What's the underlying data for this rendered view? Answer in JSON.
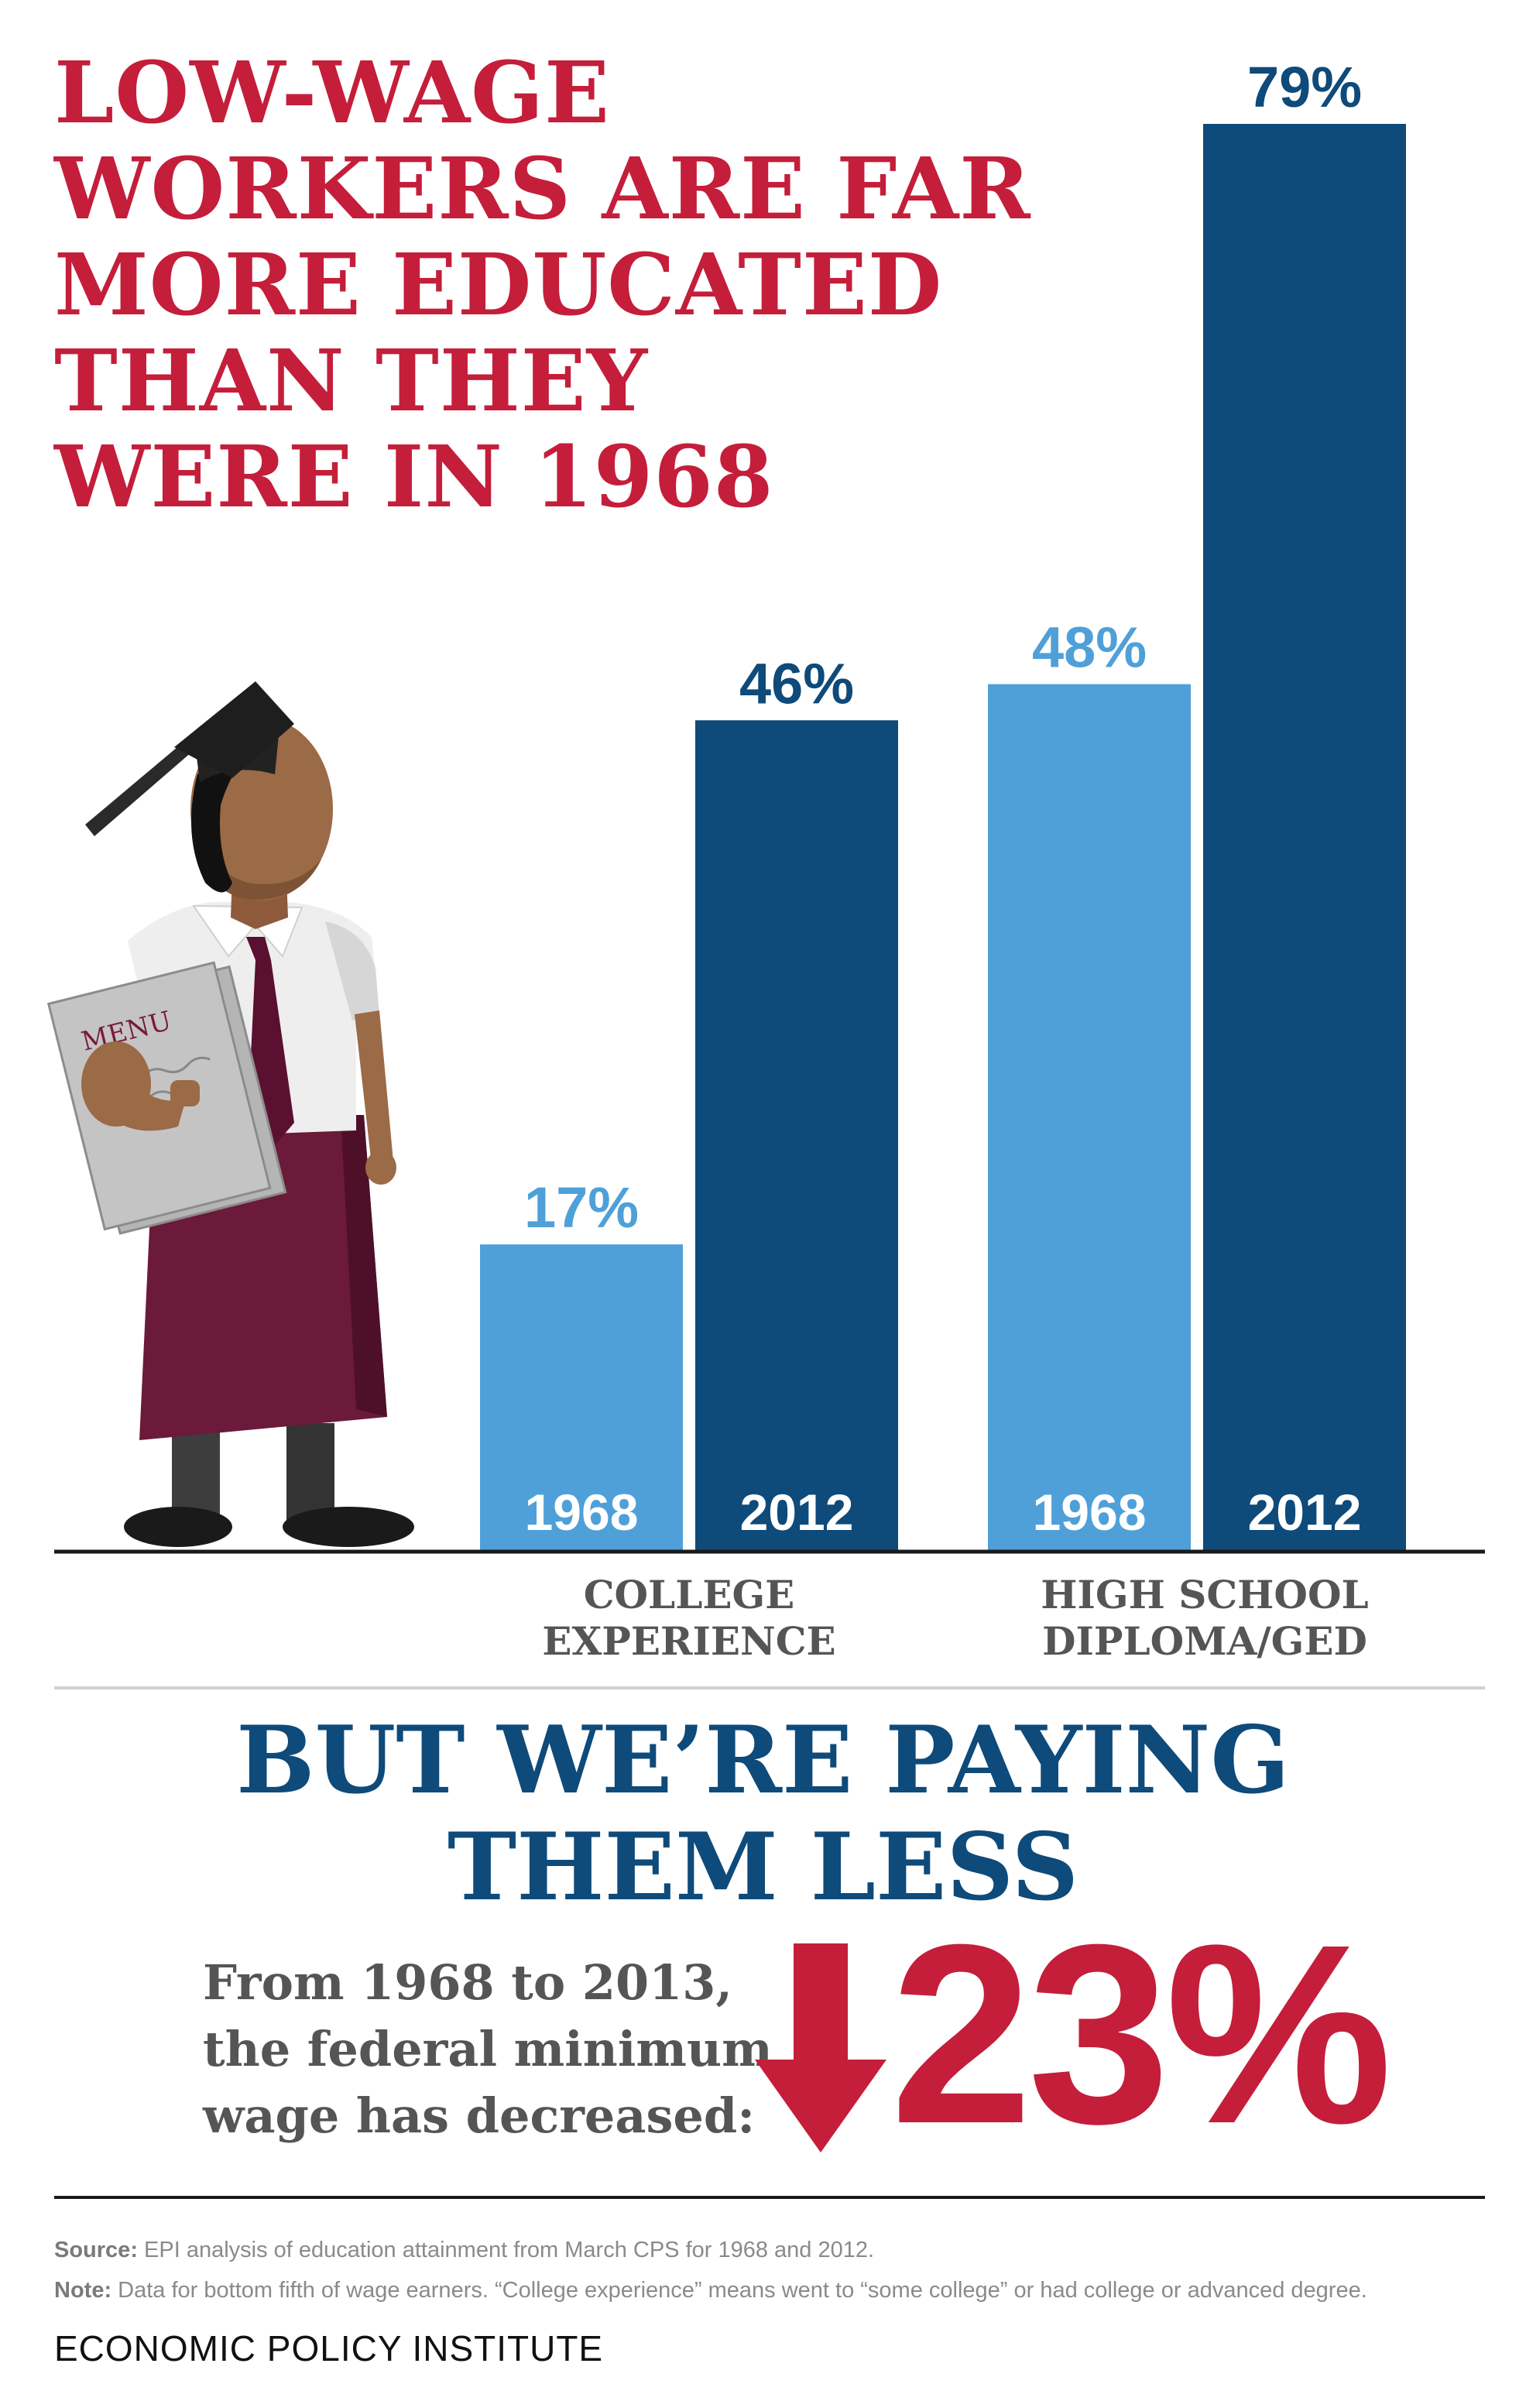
{
  "headline": {
    "lines": [
      "LOW-WAGE",
      "WORKERS ARE FAR",
      "MORE EDUCATED",
      "THAN THEY",
      "WERE IN 1968"
    ]
  },
  "colors": {
    "headline_red": "#c41e3a",
    "bar_1968": "#4fa0d8",
    "bar_2012": "#0e4a7a",
    "subhead_blue": "#0e4a7a",
    "body_gray": "#555555"
  },
  "chart_data": {
    "type": "bar",
    "categories": [
      "COLLEGE EXPERIENCE",
      "HIGH SCHOOL DIPLOMA/GED"
    ],
    "category_lines": [
      [
        "COLLEGE",
        "EXPERIENCE"
      ],
      [
        "HIGH SCHOOL",
        "DIPLOMA/GED"
      ]
    ],
    "series": [
      {
        "name": "1968",
        "values": [
          17,
          48
        ],
        "labels": [
          "17%",
          "48%"
        ]
      },
      {
        "name": "2012",
        "values": [
          46,
          79
        ],
        "labels": [
          "46%",
          "79%"
        ]
      }
    ],
    "ylim": [
      0,
      79
    ],
    "grid": false,
    "illustration": {
      "menu_text": "MENU",
      "icons": [
        "graduate-waiter-illustration"
      ]
    }
  },
  "subhead": {
    "lines": [
      "BUT WE’RE PAYING",
      "THEM LESS"
    ]
  },
  "wage": {
    "lines": [
      "From 1968 to 2013,",
      "the federal minimum",
      "wage has decreased:"
    ],
    "value": "23%",
    "icon": "down-arrow-icon"
  },
  "footer": {
    "source_label": "Source:",
    "source_text": " EPI analysis of education attainment from March CPS for 1968 and 2012.",
    "note_label": "Note:",
    "note_text": " Data for bottom fifth of wage earners. “College experience” means went to “some college” or had college or advanced degree.",
    "org": "ECONOMIC POLICY INSTITUTE"
  }
}
